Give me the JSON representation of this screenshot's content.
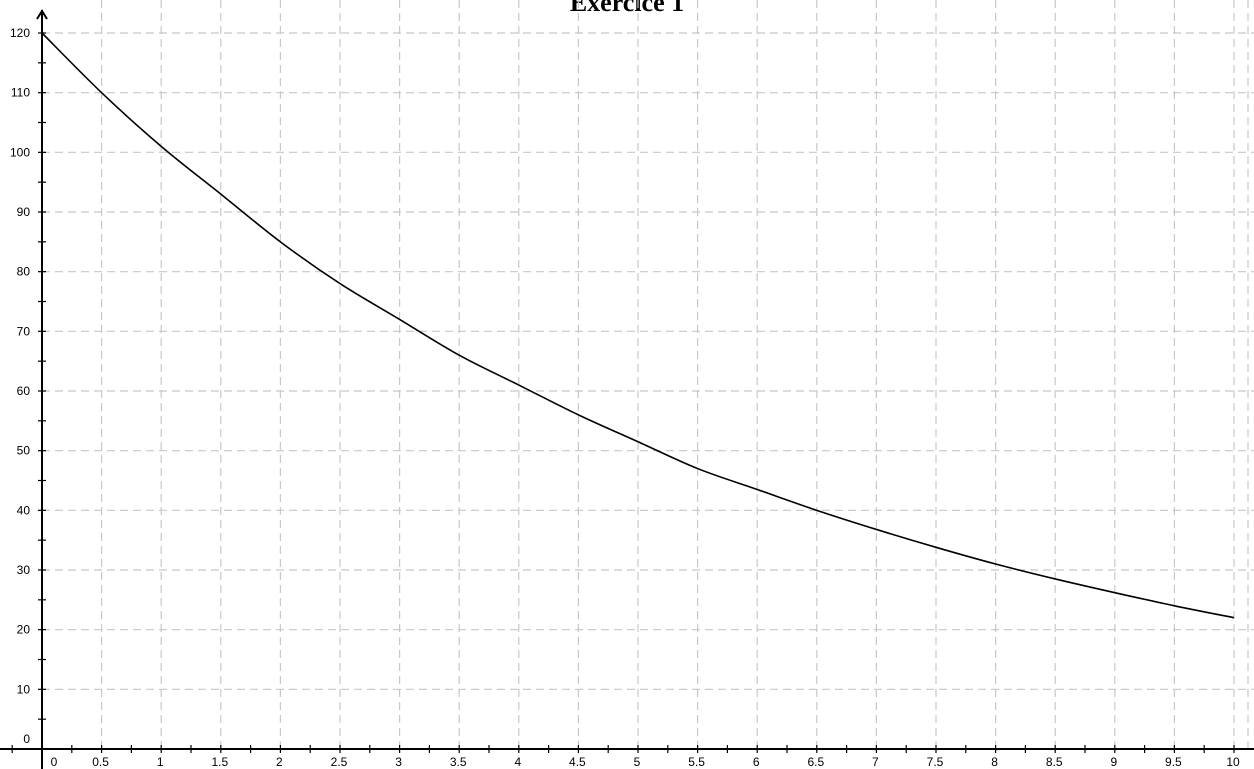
{
  "chart_data": {
    "type": "line",
    "title": "Exercice 1",
    "xlabel": "",
    "ylabel": "",
    "xlim": [
      0,
      10
    ],
    "ylim": [
      0,
      120
    ],
    "x_ticks": [
      0,
      0.5,
      1,
      1.5,
      2,
      2.5,
      3,
      3.5,
      4,
      4.5,
      5,
      5.5,
      6,
      6.5,
      7,
      7.5,
      8,
      8.5,
      9,
      9.5,
      10
    ],
    "x_tick_labels": [
      "0",
      "0.5",
      "1",
      "1.5",
      "2",
      "2.5",
      "3",
      "3.5",
      "4",
      "4.5",
      "5",
      "5.5",
      "6",
      "6.5",
      "7",
      "7.5",
      "8",
      "8.5",
      "9",
      "9.5",
      "10"
    ],
    "y_ticks": [
      0,
      10,
      20,
      30,
      40,
      50,
      60,
      70,
      80,
      90,
      100,
      110,
      120
    ],
    "y_tick_labels": [
      "0",
      "10",
      "20",
      "30",
      "40",
      "50",
      "60",
      "70",
      "80",
      "90",
      "100",
      "110",
      "120"
    ],
    "grid": true,
    "grid_style": "dashed",
    "series": [
      {
        "color": "#000000",
        "x": [
          0,
          0.5,
          1,
          1.5,
          2,
          2.5,
          3,
          3.5,
          4,
          4.5,
          5,
          5.5,
          6,
          6.5,
          7,
          7.5,
          8,
          8.5,
          9,
          9.5,
          10
        ],
        "y": [
          120,
          110,
          101,
          93,
          85,
          78,
          72,
          66,
          61,
          56,
          51.5,
          47,
          43.5,
          40,
          36.8,
          33.8,
          31,
          28.5,
          26.2,
          24,
          22
        ]
      }
    ]
  }
}
